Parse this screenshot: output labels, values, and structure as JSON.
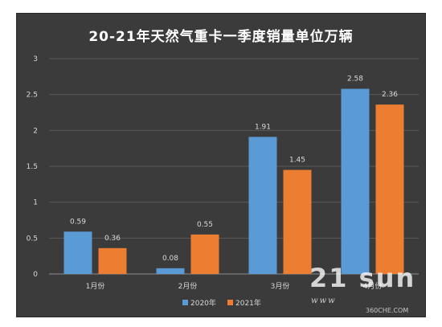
{
  "chart_data": {
    "type": "bar",
    "title": "20-21年天然气重卡一季度销量单位万辆",
    "categories": [
      "1月份",
      "2月份",
      "3月份",
      "4月份"
    ],
    "series": [
      {
        "name": "2020年",
        "color": "#5b9bd5",
        "values": [
          0.59,
          0.08,
          1.91,
          2.58
        ]
      },
      {
        "name": "2021年",
        "color": "#ed7d31",
        "values": [
          0.36,
          0.55,
          1.45,
          2.36
        ]
      }
    ],
    "data_labels": [
      [
        "0.59",
        "0.08",
        "1.91",
        "2.58"
      ],
      [
        "0.36",
        "0.55",
        "1.45",
        "2.36"
      ]
    ],
    "yticks": [
      "0",
      "0.5",
      "1",
      "1.5",
      "2",
      "2.5",
      "3"
    ],
    "ylim": [
      0,
      3
    ],
    "grid": true,
    "legend_position": "bottom"
  },
  "watermark": {
    "main": "21 sun",
    "sub": "www",
    "site": "360CHE.COM"
  }
}
